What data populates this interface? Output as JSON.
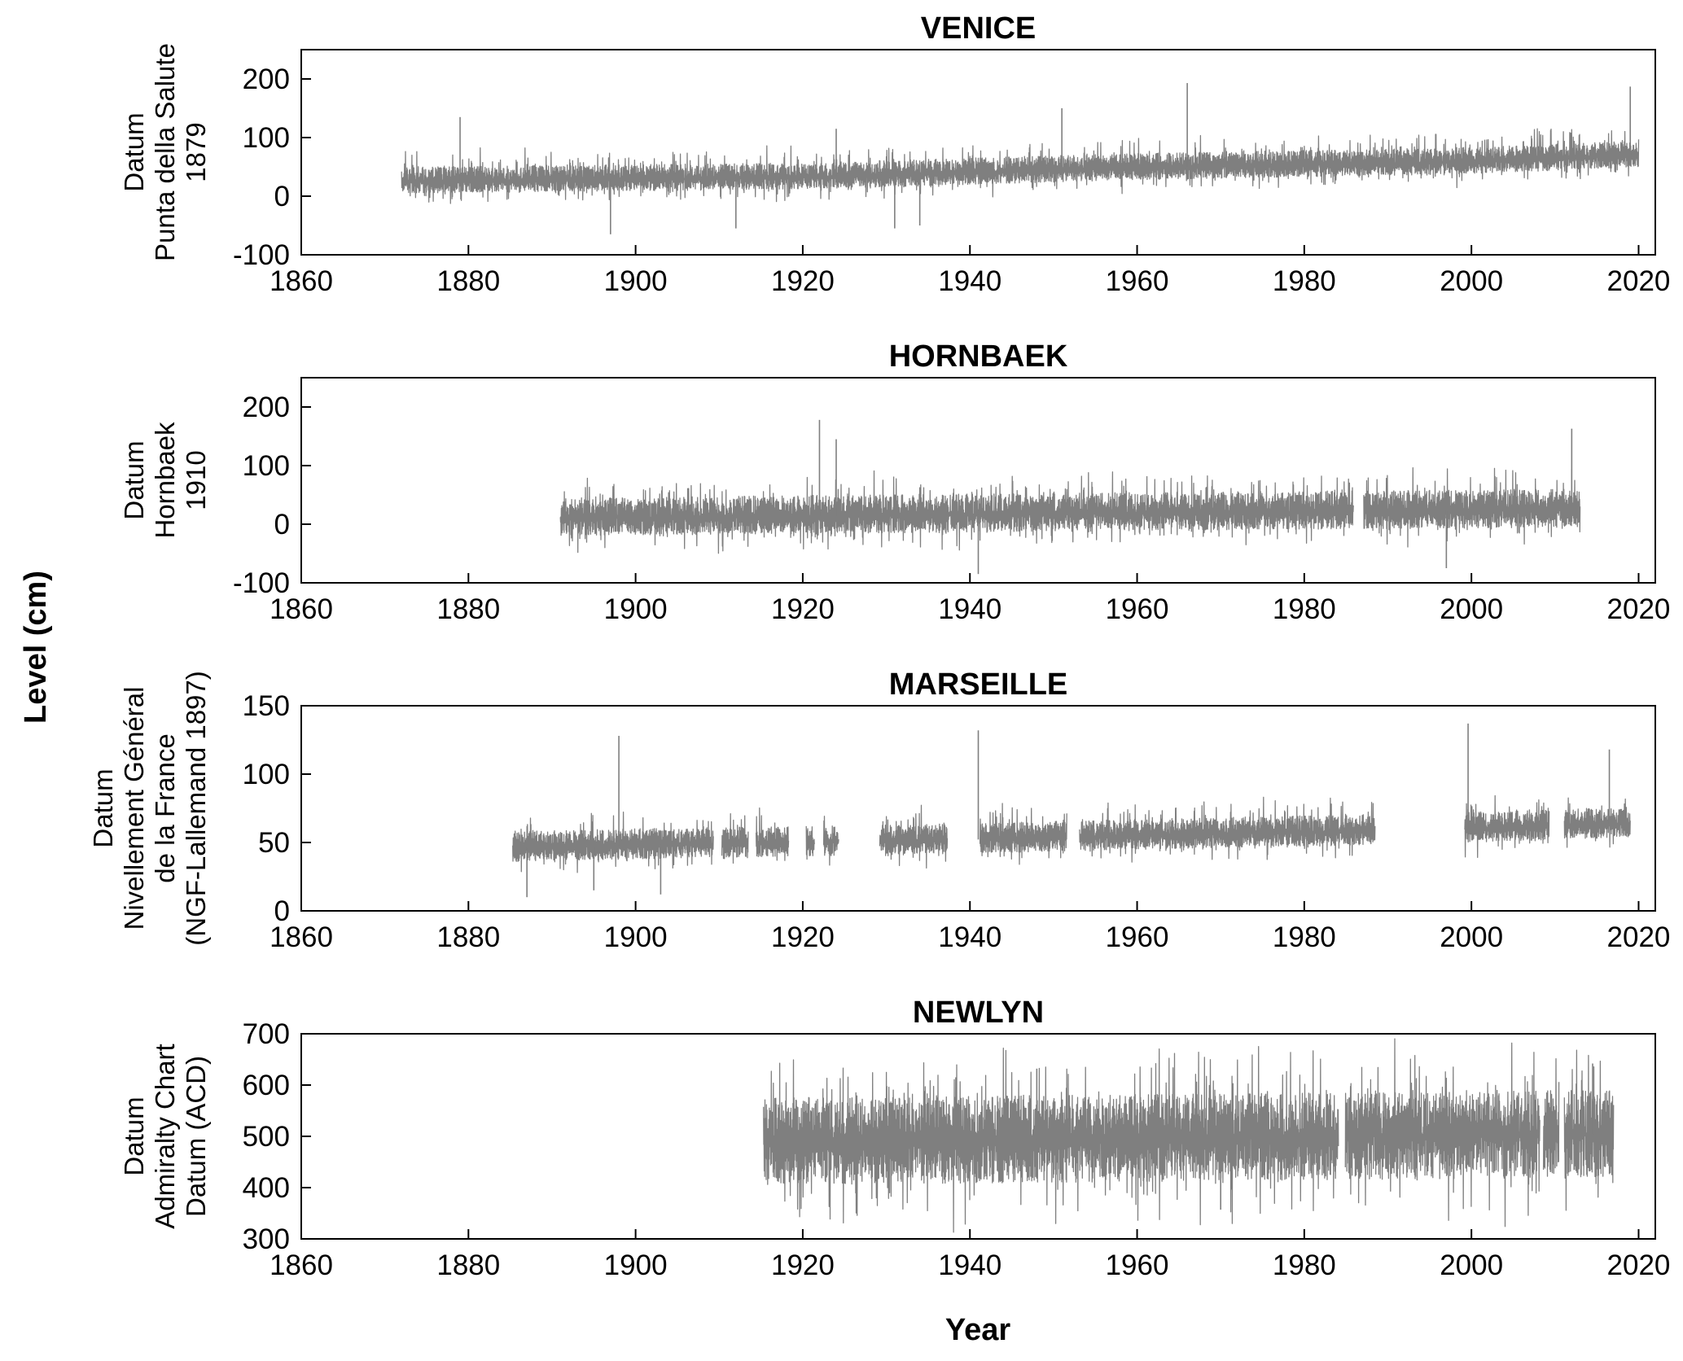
{
  "figure": {
    "ylabel": "Level (cm)",
    "xlabel": "Year",
    "series_color": "#7f7f7f"
  },
  "chart_data": [
    {
      "type": "line",
      "title": "VENICE",
      "ylabel_lines": [
        "Datum",
        "Punta della Salute",
        "1879"
      ],
      "xlim": [
        1860,
        2022
      ],
      "ylim": [
        -100,
        250
      ],
      "xticks": [
        1860,
        1880,
        1900,
        1920,
        1940,
        1960,
        1980,
        2000,
        2020
      ],
      "yticks": [
        -100,
        0,
        100,
        200
      ],
      "xtick_labels": [
        "1860",
        "1880",
        "1900",
        "1920",
        "1940",
        "1960",
        "1980",
        "2000",
        "2020"
      ],
      "ytick_labels": [
        "-100",
        "0",
        "100",
        "200"
      ],
      "series": [
        {
          "x_start": 1872,
          "x_end": 2020,
          "gaps": [],
          "base_trend": [
            [
              1872,
              25
            ],
            [
              1920,
              32
            ],
            [
              1960,
              48
            ],
            [
              2000,
              58
            ],
            [
              2020,
              70
            ]
          ],
          "band_low": 20,
          "band_high": 25,
          "spike_max": [
            [
              1879,
              135
            ],
            [
              1924,
              115
            ],
            [
              1951,
              150
            ],
            [
              1966,
              193
            ],
            [
              2019,
              187
            ]
          ],
          "spike_min": [
            [
              1897,
              -65
            ],
            [
              1912,
              -55
            ],
            [
              1931,
              -55
            ],
            [
              1934,
              -50
            ]
          ]
        }
      ]
    },
    {
      "type": "line",
      "title": "HORNBAEK",
      "ylabel_lines": [
        "Datum",
        "Hornbaek",
        "1910"
      ],
      "xlim": [
        1860,
        2022
      ],
      "ylim": [
        -100,
        250
      ],
      "xticks": [
        1860,
        1880,
        1900,
        1920,
        1940,
        1960,
        1980,
        2000,
        2020
      ],
      "yticks": [
        -100,
        0,
        100,
        200
      ],
      "xtick_labels": [
        "1860",
        "1880",
        "1900",
        "1920",
        "1940",
        "1960",
        "1980",
        "2000",
        "2020"
      ],
      "ytick_labels": [
        "-100",
        "0",
        "100",
        "200"
      ],
      "series": [
        {
          "x_start": 1891,
          "x_end": 2013,
          "gaps": [
            [
              1985.9,
              1987.1
            ]
          ],
          "base_trend": [
            [
              1891,
              10
            ],
            [
              1950,
              18
            ],
            [
              2013,
              25
            ]
          ],
          "band_low": 30,
          "band_high": 35,
          "spike_max": [
            [
              1922,
              178
            ],
            [
              2012,
              163
            ],
            [
              1924,
              145
            ]
          ],
          "spike_min": [
            [
              1941,
              -85
            ],
            [
              1997,
              -75
            ]
          ]
        }
      ]
    },
    {
      "type": "line",
      "title": "MARSEILLE",
      "ylabel_lines": [
        "Datum",
        "Nivellement Général",
        "de la France",
        "(NGF-Lallemand 1897)"
      ],
      "xlim": [
        1860,
        2022
      ],
      "ylim": [
        0,
        150
      ],
      "xticks": [
        1860,
        1880,
        1900,
        1920,
        1940,
        1960,
        1980,
        2000,
        2020
      ],
      "yticks": [
        0,
        50,
        100,
        150
      ],
      "xtick_labels": [
        "1860",
        "1880",
        "1900",
        "1920",
        "1940",
        "1960",
        "1980",
        "2000",
        "2020"
      ],
      "ytick_labels": [
        "0",
        "50",
        "100",
        "150"
      ],
      "series": [
        {
          "x_start": 1885.3,
          "x_end": 2019,
          "gaps": [
            [
              1909.3,
              1910.3
            ],
            [
              1913.5,
              1914.4
            ],
            [
              1918.3,
              1920.4
            ],
            [
              1921.4,
              1922.5
            ],
            [
              1924.3,
              1929.2
            ],
            [
              1937.3,
              1941.2
            ],
            [
              1951.6,
              1953.1
            ],
            [
              1988.5,
              1999.2
            ],
            [
              2009.3,
              2011.1
            ]
          ],
          "base_trend": [
            [
              1885,
              46
            ],
            [
              1900,
              48
            ],
            [
              1940,
              52
            ],
            [
              1960,
              55
            ],
            [
              2000,
              60
            ],
            [
              2019,
              64
            ]
          ],
          "band_low": 10,
          "band_high": 12,
          "spike_max": [
            [
              1898,
              128
            ],
            [
              1941,
              132
            ],
            [
              1999.6,
              137
            ],
            [
              2016.5,
              118
            ]
          ],
          "spike_min": [
            [
              1887,
              10
            ],
            [
              1895,
              15
            ],
            [
              1903,
              12
            ]
          ]
        }
      ]
    },
    {
      "type": "line",
      "title": "NEWLYN",
      "ylabel_lines": [
        "Datum",
        "Admiralty Chart",
        "Datum (ACD)"
      ],
      "xlim": [
        1860,
        2022
      ],
      "ylim": [
        300,
        700
      ],
      "xticks": [
        1860,
        1880,
        1900,
        1920,
        1940,
        1960,
        1980,
        2000,
        2020
      ],
      "yticks": [
        300,
        400,
        500,
        600,
        700
      ],
      "xtick_labels": [
        "1860",
        "1880",
        "1900",
        "1920",
        "1940",
        "1960",
        "1980",
        "2000",
        "2020"
      ],
      "ytick_labels": [
        "300",
        "400",
        "500",
        "600",
        "700"
      ],
      "series": [
        {
          "x_start": 1915.3,
          "x_end": 2017,
          "gaps": [
            [
              1984.1,
              1984.9
            ],
            [
              2008.2,
              2008.6
            ],
            [
              2010.5,
              2011.1
            ]
          ],
          "base_trend": [
            [
              1915,
              490
            ],
            [
              2017,
              505
            ]
          ],
          "band_low": 85,
          "band_high": 85,
          "spike_max": [
            [
              1948,
              632
            ],
            [
              2014.5,
              642
            ]
          ],
          "spike_min": [
            [
              1970,
              357
            ]
          ]
        }
      ]
    }
  ]
}
